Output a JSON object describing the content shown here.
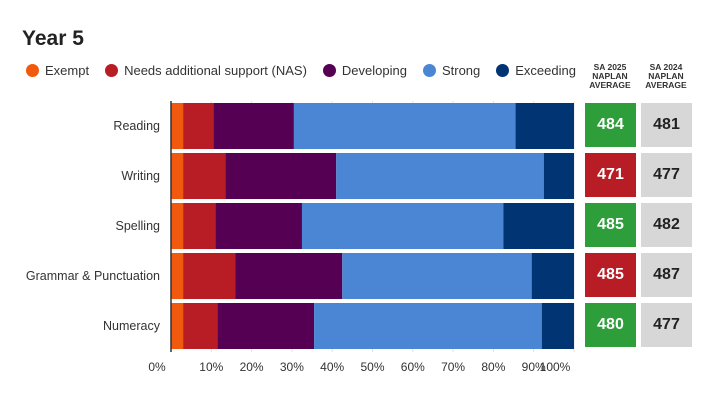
{
  "title": "Year 5",
  "legend": [
    {
      "label": "Exempt",
      "color": "#f15a0e"
    },
    {
      "label": "Needs additional support (NAS)",
      "color": "#b81c25"
    },
    {
      "label": "Developing",
      "color": "#560054"
    },
    {
      "label": "Strong",
      "color": "#4a86d3"
    },
    {
      "label": "Exceeding",
      "color": "#003472"
    }
  ],
  "columns": {
    "sa2025": {
      "line1": "SA 2025",
      "line2": "NAPLAN",
      "line3": "AVERAGE"
    },
    "sa2024": {
      "line1": "SA 2024",
      "line2": "NAPLAN",
      "line3": "AVERAGE"
    }
  },
  "status_colors": {
    "above": "#2e9e3b",
    "below": "#b81c25"
  },
  "averages": [
    {
      "sa2025": "484",
      "sa2024": "481",
      "status": "above"
    },
    {
      "sa2025": "471",
      "sa2024": "477",
      "status": "below"
    },
    {
      "sa2025": "485",
      "sa2024": "482",
      "status": "above"
    },
    {
      "sa2025": "485",
      "sa2024": "487",
      "status": "below"
    },
    {
      "sa2025": "480",
      "sa2024": "477",
      "status": "above"
    }
  ],
  "chart_data": {
    "type": "bar",
    "orientation": "horizontal",
    "stacked": true,
    "categories": [
      "Reading",
      "Writing",
      "Spelling",
      "Grammar & Punctuation",
      "Numeracy"
    ],
    "series": [
      {
        "name": "Exempt",
        "color": "#f15a0e",
        "values": [
          3,
          3,
          3,
          3,
          3
        ]
      },
      {
        "name": "Needs additional support (NAS)",
        "color": "#b81c25",
        "values": [
          7.5,
          10.5,
          8,
          13,
          8.5
        ]
      },
      {
        "name": "Developing",
        "color": "#560054",
        "values": [
          20,
          27.5,
          21.5,
          26.5,
          24
        ]
      },
      {
        "name": "Strong",
        "color": "#4a86d3",
        "values": [
          55,
          51.5,
          50,
          47,
          56.5
        ]
      },
      {
        "name": "Exceeding",
        "color": "#003472",
        "values": [
          14.5,
          7.5,
          17.5,
          10.5,
          8
        ]
      }
    ],
    "xlim": [
      0,
      100
    ],
    "xticks": [
      "0%",
      "10%",
      "20%",
      "30%",
      "40%",
      "50%",
      "60%",
      "70%",
      "80%",
      "90%",
      "100%"
    ],
    "grid": true,
    "legend_position": "top"
  }
}
